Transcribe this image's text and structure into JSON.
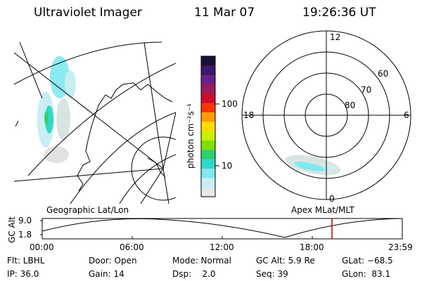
{
  "header": {
    "title": "Ultraviolet Imager",
    "date": "11 Mar 07",
    "time": "19:26:36 UT"
  },
  "colorbar": {
    "label": "photon cm⁻²s⁻¹",
    "ticks": [
      "100",
      "10"
    ],
    "colors": [
      "#1a1030",
      "#3a1a6a",
      "#6a1f8a",
      "#9a1a5a",
      "#c8102a",
      "#ff3300",
      "#ff9900",
      "#ffdd00",
      "#c8f000",
      "#7fe000",
      "#2fd070",
      "#30d8c8",
      "#7fe8f0",
      "#c8eef2",
      "#e8e8e8"
    ]
  },
  "left_map": {
    "caption": "Geographic Lat/Lon"
  },
  "right_map": {
    "caption": "Apex  MLat/MLT",
    "mlt_labels": {
      "top": "12",
      "left": "18",
      "right": "6",
      "bottom": "0"
    },
    "lat_labels": [
      "60",
      "70",
      "80"
    ]
  },
  "altitude_plot": {
    "ylabel": "GC Alt",
    "yticks": [
      "9.0",
      "1.8"
    ],
    "xticks": [
      "00:00",
      "06:00",
      "12:00",
      "18:00",
      "23:59"
    ]
  },
  "info": {
    "row1": [
      "Flt: LBHL",
      "Door: Open",
      "Mode: Normal",
      "GC Alt: 5.9 Re",
      "GLat: −68.5"
    ],
    "row2": [
      "IP: 36.0",
      "Gain: 14",
      "Dsp:    2.0",
      "Seq: 39",
      "GLon:  83.1"
    ]
  }
}
